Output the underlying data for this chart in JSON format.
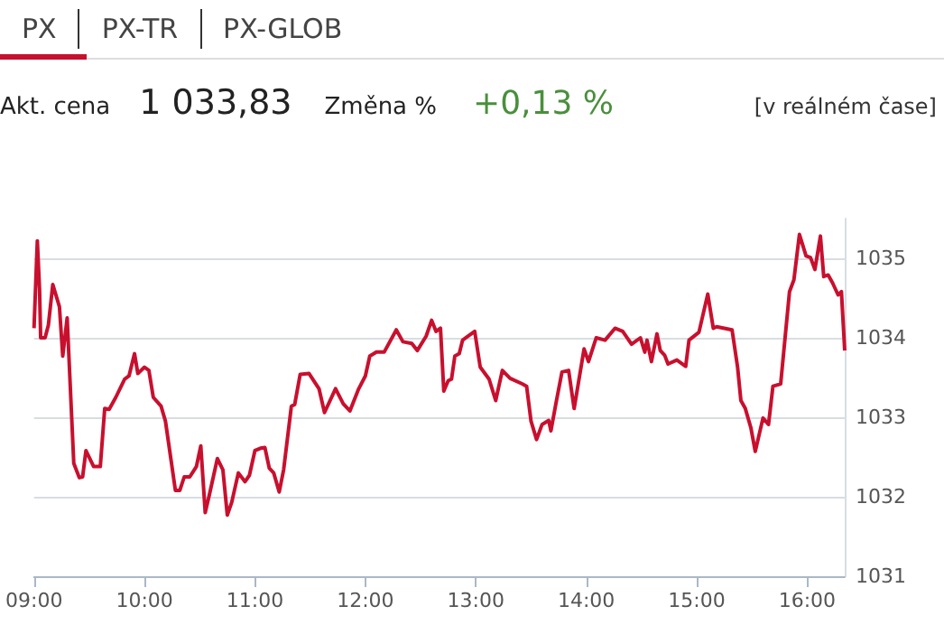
{
  "chart_data": {
    "type": "line",
    "annotations": [
      "PX",
      "PX-TR",
      "PX-GLOB",
      "Akt. cena",
      "1 033,83",
      "Změna %",
      "+0,13 %",
      "[v reálném čase]"
    ],
    "x": [
      9.0,
      9.03,
      9.05,
      9.06,
      9.1,
      9.13,
      9.17,
      9.23,
      9.26,
      9.3,
      9.36,
      9.41,
      9.44,
      9.47,
      9.54,
      9.6,
      9.64,
      9.68,
      9.74,
      9.82,
      9.86,
      9.91,
      9.94,
      10.0,
      10.04,
      10.08,
      10.15,
      10.19,
      10.28,
      10.32,
      10.36,
      10.41,
      10.47,
      10.51,
      10.55,
      10.59,
      10.66,
      10.71,
      10.75,
      10.79,
      10.85,
      10.91,
      10.95,
      11.0,
      11.05,
      11.09,
      11.13,
      11.17,
      11.22,
      11.26,
      11.33,
      11.36,
      11.41,
      11.49,
      11.58,
      11.63,
      11.73,
      11.8,
      11.86,
      11.94,
      12.0,
      12.04,
      12.1,
      12.17,
      12.28,
      12.34,
      12.42,
      12.47,
      12.55,
      12.6,
      12.64,
      12.68,
      12.71,
      12.75,
      12.78,
      12.81,
      12.85,
      12.88,
      12.93,
      12.99,
      13.04,
      13.12,
      13.18,
      13.24,
      13.31,
      13.42,
      13.46,
      13.5,
      13.55,
      13.6,
      13.66,
      13.68,
      13.73,
      13.78,
      13.84,
      13.89,
      13.98,
      14.02,
      14.09,
      14.17,
      14.26,
      14.33,
      14.41,
      14.49,
      14.53,
      14.55,
      14.59,
      14.64,
      14.67,
      14.71,
      14.74,
      14.82,
      14.9,
      14.93,
      15.02,
      15.1,
      15.15,
      15.18,
      15.32,
      15.37,
      15.4,
      15.44,
      15.49,
      15.53,
      15.6,
      15.65,
      15.69,
      15.76,
      15.84,
      15.88,
      15.93,
      15.99,
      16.03,
      16.07,
      16.12,
      16.15,
      16.19,
      16.23,
      16.28,
      16.31,
      16.34
    ],
    "series": [
      {
        "color": "#c8102e",
        "values": [
          1034.12,
          1035.22,
          1034.61,
          1034.0,
          1034.0,
          1034.16,
          1034.67,
          1034.39,
          1033.77,
          1034.25,
          1032.42,
          1032.24,
          1032.25,
          1032.58,
          1032.38,
          1032.38,
          1033.11,
          1033.1,
          1033.25,
          1033.48,
          1033.52,
          1033.8,
          1033.55,
          1033.63,
          1033.59,
          1033.25,
          1033.14,
          1032.95,
          1032.08,
          1032.08,
          1032.25,
          1032.25,
          1032.38,
          1032.64,
          1031.8,
          1032.04,
          1032.48,
          1032.34,
          1031.77,
          1031.93,
          1032.3,
          1032.19,
          1032.27,
          1032.58,
          1032.61,
          1032.62,
          1032.36,
          1032.3,
          1032.06,
          1032.34,
          1033.14,
          1033.16,
          1033.54,
          1033.55,
          1033.36,
          1033.06,
          1033.36,
          1033.17,
          1033.08,
          1033.36,
          1033.52,
          1033.77,
          1033.82,
          1033.82,
          1034.1,
          1033.95,
          1033.93,
          1033.84,
          1034.02,
          1034.22,
          1034.08,
          1034.12,
          1033.33,
          1033.46,
          1033.48,
          1033.77,
          1033.8,
          1033.97,
          1034.02,
          1034.08,
          1033.63,
          1033.48,
          1033.21,
          1033.59,
          1033.49,
          1033.42,
          1033.39,
          1032.95,
          1032.72,
          1032.91,
          1032.96,
          1032.83,
          1033.21,
          1033.57,
          1033.59,
          1033.11,
          1033.86,
          1033.7,
          1034.0,
          1033.97,
          1034.12,
          1034.08,
          1033.92,
          1034.0,
          1033.82,
          1033.97,
          1033.7,
          1034.05,
          1033.84,
          1033.78,
          1033.67,
          1033.72,
          1033.64,
          1033.97,
          1034.07,
          1034.55,
          1034.12,
          1034.14,
          1034.1,
          1033.63,
          1033.21,
          1033.11,
          1032.87,
          1032.57,
          1032.99,
          1032.91,
          1033.39,
          1033.42,
          1034.58,
          1034.73,
          1035.3,
          1035.03,
          1035.01,
          1034.86,
          1035.28,
          1034.77,
          1034.79,
          1034.69,
          1034.54,
          1034.58,
          1033.84
        ]
      }
    ],
    "xlim": [
      9,
      16.34
    ],
    "xticks": [
      {
        "value": 9,
        "label": "09:00"
      },
      {
        "value": 10,
        "label": "10:00"
      },
      {
        "value": 11,
        "label": "11:00"
      },
      {
        "value": 12,
        "label": "12:00"
      },
      {
        "value": 13,
        "label": "13:00"
      },
      {
        "value": 14,
        "label": "14:00"
      },
      {
        "value": 15,
        "label": "15:00"
      },
      {
        "value": 16,
        "label": "16:00"
      }
    ],
    "ylim": [
      1031,
      1035.5
    ],
    "yticks": [
      1031,
      1032,
      1033,
      1034,
      1035
    ],
    "grid": "y",
    "marker": "none",
    "line_style": "solid"
  }
}
